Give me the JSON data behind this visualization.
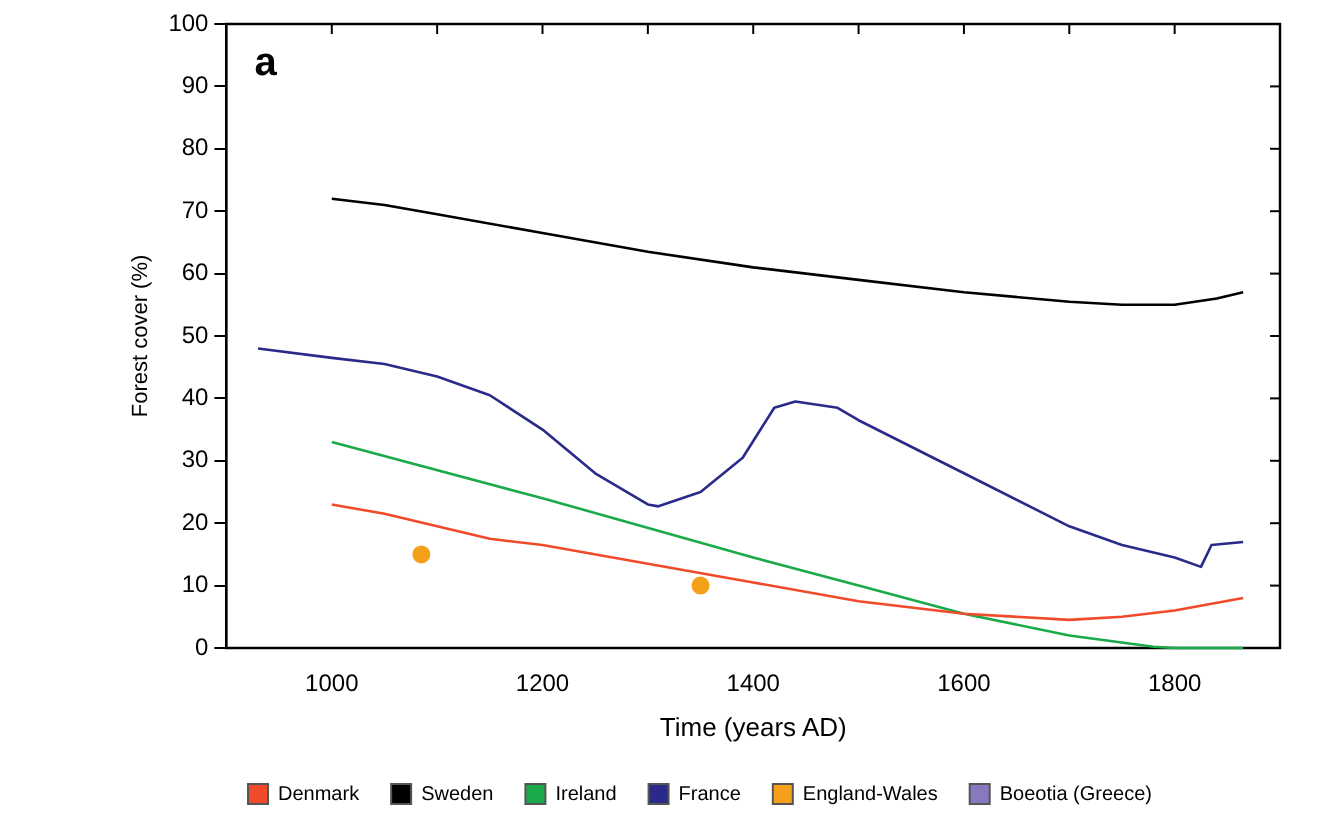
{
  "chart_data": {
    "type": "line",
    "xlabel": "Time (years AD)",
    "ylabel": "Forest cover (%)",
    "annotations": [
      "a"
    ],
    "xlim": [
      900,
      1900
    ],
    "xticks": [
      {
        "value": 1000,
        "label": "1000"
      },
      {
        "value": 1100,
        "label": null
      },
      {
        "value": 1200,
        "label": "1200"
      },
      {
        "value": 1300,
        "label": null
      },
      {
        "value": 1400,
        "label": "1400"
      },
      {
        "value": 1500,
        "label": null
      },
      {
        "value": 1600,
        "label": "1600"
      },
      {
        "value": 1700,
        "label": null
      },
      {
        "value": 1800,
        "label": "1800"
      }
    ],
    "ylim": [
      0,
      100
    ],
    "yticks": [
      0,
      10,
      20,
      30,
      40,
      50,
      60,
      70,
      80,
      90,
      100
    ],
    "grid": false,
    "legend": "bottom",
    "marker": "none",
    "line_style": "solid",
    "series": [
      {
        "name": "Denmark",
        "color": "#f04a2a",
        "x": [
          1000,
          1050,
          1100,
          1150,
          1200,
          1300,
          1400,
          1500,
          1600,
          1700,
          1750,
          1800,
          1865
        ],
        "values": [
          23,
          21.5,
          19.5,
          17.5,
          16.5,
          13.5,
          10.5,
          7.5,
          5.5,
          4.5,
          5,
          6,
          8
        ]
      },
      {
        "name": "Sweden",
        "color": "#000000",
        "x": [
          1000,
          1050,
          1100,
          1200,
          1300,
          1400,
          1500,
          1600,
          1700,
          1750,
          1800,
          1840,
          1865
        ],
        "values": [
          72,
          71,
          69.5,
          66.5,
          63.5,
          61,
          59,
          57,
          55.5,
          55,
          55,
          56,
          57
        ]
      },
      {
        "name": "Ireland",
        "color": "#1aaa4a",
        "x": [
          1000,
          1200,
          1400,
          1500,
          1600,
          1700,
          1780,
          1800,
          1865
        ],
        "values": [
          33,
          24,
          14.5,
          10,
          5.5,
          2,
          0.2,
          0,
          0
        ]
      },
      {
        "name": "France",
        "color": "#2a2a8a",
        "x": [
          930,
          1000,
          1050,
          1100,
          1150,
          1200,
          1250,
          1300,
          1310,
          1350,
          1390,
          1420,
          1440,
          1480,
          1500,
          1600,
          1700,
          1750,
          1800,
          1825,
          1835,
          1865
        ],
        "values": [
          48,
          46.5,
          45.5,
          43.5,
          40.5,
          35,
          28,
          23,
          22.7,
          25,
          30.5,
          38.5,
          39.5,
          38.5,
          36.5,
          28,
          19.5,
          16.5,
          14.5,
          13,
          16.5,
          17
        ]
      },
      {
        "name": "England-Wales",
        "type": "scatter",
        "marker": "circle",
        "color": "#f5a01a",
        "x": [
          1085,
          1350
        ],
        "values": [
          15,
          10
        ]
      },
      {
        "name": "Boeotia (Greece)",
        "color": "#8878c0"
      }
    ]
  }
}
